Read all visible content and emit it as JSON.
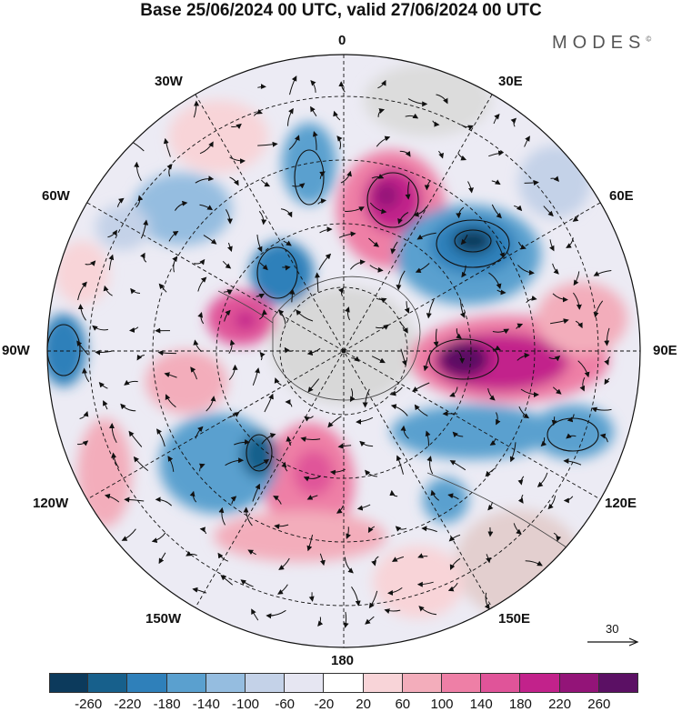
{
  "title": "Base 25/06/2024 00 UTC, valid 27/06/2024 00 UTC",
  "logo": "MODES",
  "logo_mark": "©",
  "longitude_labels": {
    "top": "0",
    "top_right": "30E",
    "right_upper": "60E",
    "right": "90E",
    "right_lower": "120E",
    "bottom_right": "150E",
    "bottom": "180",
    "bottom_left": "150W",
    "left_lower": "120W",
    "left": "90W",
    "left_upper": "60W",
    "top_left": "30W"
  },
  "reference_vector": {
    "label": "30"
  },
  "colorbar": {
    "colors": [
      "#0c3a5c",
      "#17608c",
      "#2f80ba",
      "#5aa0cf",
      "#95bde0",
      "#c4d2e8",
      "#e6e6f2",
      "#ffffff",
      "#f8d4d8",
      "#f3adbb",
      "#ee7fa6",
      "#e05499",
      "#c2228b",
      "#931478",
      "#5b1064"
    ],
    "tick_labels": [
      "-260",
      "-220",
      "-180",
      "-140",
      "-100",
      "-60",
      "-20",
      "20",
      "60",
      "100",
      "140",
      "180",
      "220",
      "260"
    ]
  },
  "field_colors": {
    "strong_negative": "#17608c",
    "moderate_negative": "#5aa0cf",
    "weak_negative": "#c4d2e8",
    "weak_positive": "#f8d4d8",
    "moderate_positive": "#ee7fa6",
    "strong_positive": "#931478",
    "land": "#d8d8d8"
  }
}
